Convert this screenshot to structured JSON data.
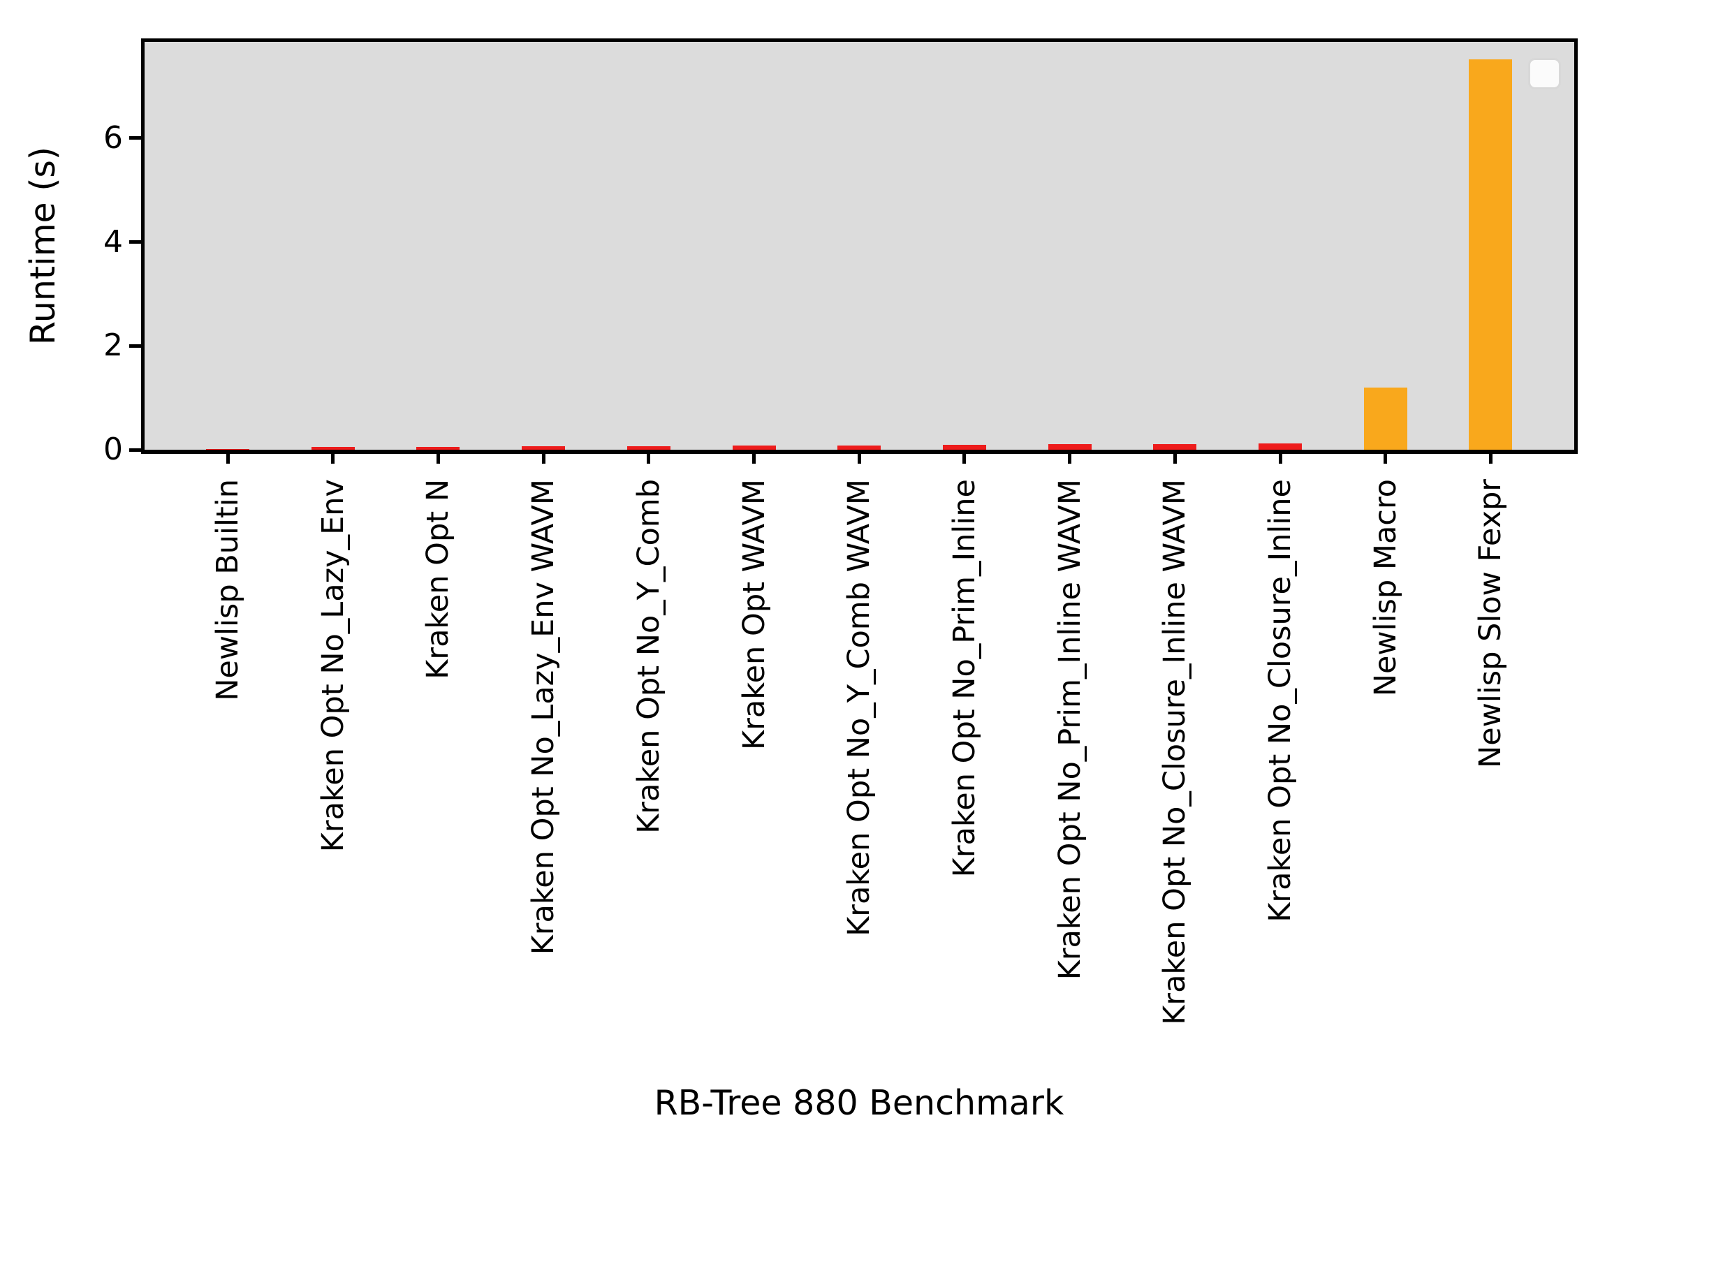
{
  "chart_data": {
    "type": "bar",
    "title": "",
    "xlabel": "RB-Tree 880 Benchmark",
    "ylabel": "Runtime (s)",
    "categories": [
      "Newlisp Builtin",
      "Kraken Opt No_Lazy_Env",
      "Kraken Opt N",
      "Kraken Opt No_Lazy_Env WAVM",
      "Kraken Opt No_Y_Comb",
      "Kraken Opt WAVM",
      "Kraken Opt No_Y_Comb WAVM",
      "Kraken Opt No_Prim_Inline",
      "Kraken Opt No_Prim_Inline WAVM",
      "Kraken Opt No_Closure_Inline WAVM",
      "Kraken Opt No_Closure_Inline",
      "Newlisp Macro",
      "Newlisp Slow Fexpr"
    ],
    "values": [
      0.01,
      0.06,
      0.06,
      0.07,
      0.07,
      0.08,
      0.08,
      0.1,
      0.11,
      0.11,
      0.12,
      1.2,
      7.52
    ],
    "bar_colors": [
      "#ee1c1c",
      "#ee1c1c",
      "#ee1c1c",
      "#ee1c1c",
      "#ee1c1c",
      "#ee1c1c",
      "#ee1c1c",
      "#ee1c1c",
      "#ee1c1c",
      "#ee1c1c",
      "#ee1c1c",
      "#f9a81c",
      "#f9a81c"
    ],
    "yticks": [
      0,
      2,
      4,
      6
    ],
    "ylim": [
      0,
      7.9
    ],
    "grid": false,
    "legend": {
      "visible": true,
      "position": "upper right",
      "entries": []
    },
    "colors": {
      "plot_background": "#dcdcdc",
      "figure_background": "#ffffff",
      "red_bar": "#ee1c1c",
      "orange_bar": "#f9a81c",
      "spine": "#000000",
      "tick": "#000000",
      "legend_background": "#fbfbfb",
      "legend_border": "#d8d8d8"
    }
  }
}
